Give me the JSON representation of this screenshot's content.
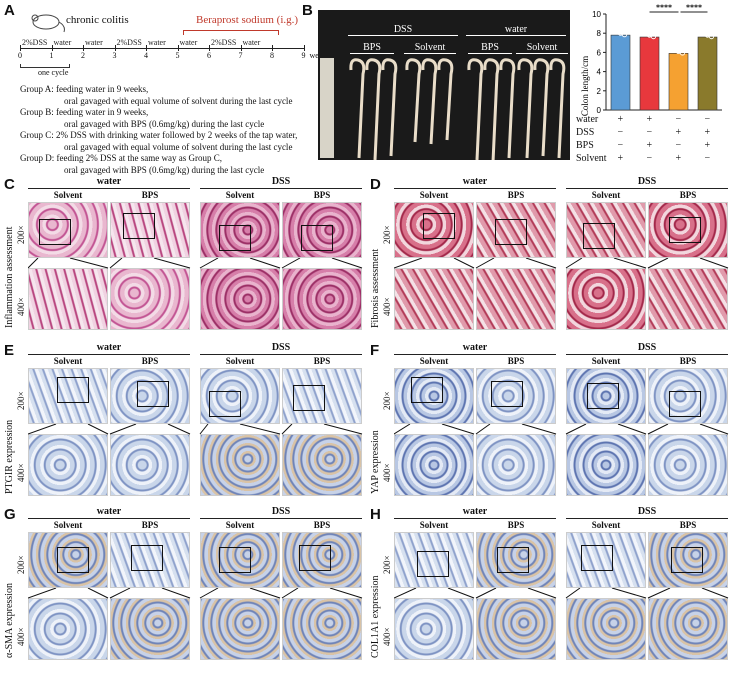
{
  "panels": {
    "A": "A",
    "B": "B",
    "C": "C",
    "D": "D",
    "E": "E",
    "F": "F",
    "G": "G",
    "H": "H"
  },
  "panelA": {
    "title": "chronic colitis",
    "drug": "Beraprost sodium (i.g.)",
    "timeline_labels": [
      "2%DSS",
      "water",
      "water",
      "2%DSS",
      "water",
      "water",
      "2%DSS",
      "water"
    ],
    "weeks": [
      "0",
      "1",
      "2",
      "3",
      "4",
      "5",
      "6",
      "7",
      "8",
      "9"
    ],
    "weeks_unit": "weeks",
    "cycle": "one cycle",
    "groups": [
      {
        "l1": "Group A: feeding water in 9 weeks,",
        "l2": "oral gavaged with equal volume of solvent during the last cycle"
      },
      {
        "l1": "Group B:  feeding water in 9 weeks,",
        "l2": "oral gavaged with BPS (0.6mg/kg) during the last cycle"
      },
      {
        "l1": "Group C: 2% DSS with drinking water followed by 2 weeks of the tap water,",
        "l2": "oral gavaged with equal volume of solvent during the last cycle"
      },
      {
        "l1": "Group D: feeding 2% DSS at the same way as Group C,",
        "l2": "oral gavaged with BPS (0.6mg/kg) during the last cycle"
      }
    ]
  },
  "panelB": {
    "photo_labels": {
      "dss": "DSS",
      "water": "water",
      "bps1": "BPS",
      "solvent1": "Solvent",
      "bps2": "BPS",
      "solvent2": "Solvent"
    },
    "sig": [
      "****",
      "****"
    ],
    "table_rows": [
      {
        "label": "water",
        "vals": [
          "+",
          "+",
          "−",
          "−"
        ]
      },
      {
        "label": "DSS",
        "vals": [
          "−",
          "−",
          "+",
          "+"
        ]
      },
      {
        "label": "BPS",
        "vals": [
          "−",
          "+",
          "−",
          "+"
        ]
      },
      {
        "label": "Solvent",
        "vals": [
          "+",
          "−",
          "+",
          "−"
        ]
      }
    ]
  },
  "chart_data": {
    "type": "bar",
    "ylabel": "Colon length/cm",
    "ylim": [
      0,
      10
    ],
    "yticks": [
      "0",
      "2",
      "4",
      "6",
      "8",
      "10"
    ],
    "categories": [
      "water+Solvent",
      "water+BPS",
      "DSS+Solvent",
      "DSS+BPS"
    ],
    "values": [
      7.8,
      7.6,
      5.9,
      7.6
    ],
    "colors": [
      "#5b9bd5",
      "#e8383d",
      "#f5a131",
      "#8a7a2c"
    ]
  },
  "histo": {
    "water": "water",
    "dss": "DSS",
    "solvent": "Solvent",
    "bps": "BPS",
    "mag200": "200×",
    "mag400": "400×",
    "C_label": "Inflammation assessment",
    "D_label": "Fibrosis assessment",
    "E_label": "PTGIR expression",
    "F_label": "YAP expression",
    "G_label": "α-SMA expression",
    "H_label": "COL1A1 expression"
  }
}
